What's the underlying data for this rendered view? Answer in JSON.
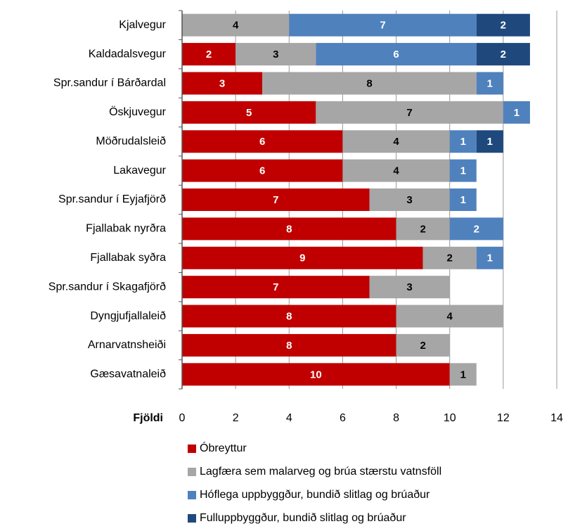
{
  "chart_data": {
    "type": "stacked-bar-horizontal",
    "categories": [
      "Kjalvegur",
      "Kaldadalsvegur",
      "Spr.sandur í Bárðardal",
      "Öskjuvegur",
      "Möðrudalsleið",
      "Lakavegur",
      "Spr.sandur í Eyjafjörð",
      "Fjallabak nyrðra",
      "Fjallabak syðra",
      "Spr.sandur í Skagafjörð",
      "Dyngjufjallaleið",
      "Arnarvatnsheiði",
      "Gæsavatnaleið"
    ],
    "series": [
      {
        "name": "Óbreyttur",
        "color": "#c00000",
        "label_color": "#ffffff",
        "values": [
          null,
          2,
          3,
          5,
          6,
          6,
          7,
          8,
          9,
          7,
          8,
          8,
          10
        ]
      },
      {
        "name": "Lagfæra sem malarveg og brúa stærstu vatnsföll",
        "color": "#a6a6a6",
        "label_color": "#000000",
        "values": [
          4,
          3,
          8,
          7,
          4,
          4,
          3,
          2,
          2,
          3,
          4,
          2,
          1
        ]
      },
      {
        "name": "Hóflega uppbyggður, bundið slitlag og brúaður",
        "color": "#4f81bd",
        "label_color": "#ffffff",
        "values": [
          7,
          6,
          1,
          1,
          1,
          1,
          1,
          2,
          1,
          null,
          null,
          null,
          null
        ]
      },
      {
        "name": "Fulluppbyggður, bundið slitlag og brúaður",
        "color": "#1f497d",
        "label_color": "#ffffff",
        "values": [
          2,
          2,
          null,
          null,
          1,
          null,
          null,
          null,
          null,
          null,
          null,
          null,
          null
        ]
      }
    ],
    "x_label": "Fjöldi",
    "xlim": [
      0,
      14
    ],
    "xticks": [
      0,
      2,
      4,
      6,
      8,
      10,
      12,
      14
    ],
    "grid": true,
    "legend": "bottom"
  }
}
